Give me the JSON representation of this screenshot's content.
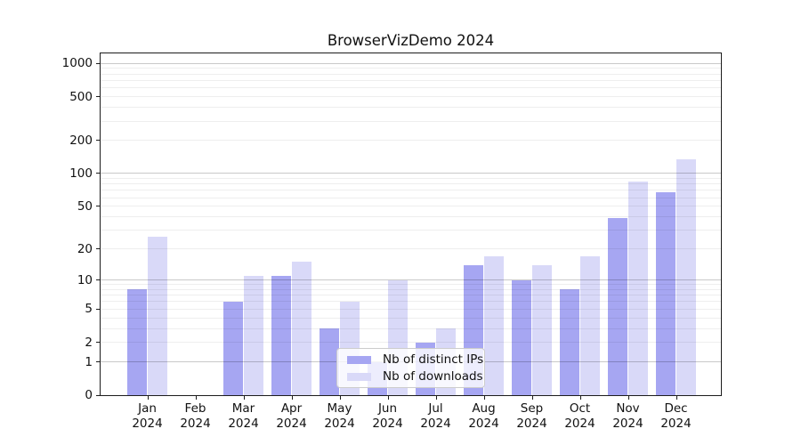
{
  "chart_data": {
    "type": "bar",
    "title": "BrowserVizDemo 2024",
    "categories": [
      {
        "month": "Jan",
        "year": "2024"
      },
      {
        "month": "Feb",
        "year": "2024"
      },
      {
        "month": "Mar",
        "year": "2024"
      },
      {
        "month": "Apr",
        "year": "2024"
      },
      {
        "month": "May",
        "year": "2024"
      },
      {
        "month": "Jun",
        "year": "2024"
      },
      {
        "month": "Jul",
        "year": "2024"
      },
      {
        "month": "Aug",
        "year": "2024"
      },
      {
        "month": "Sep",
        "year": "2024"
      },
      {
        "month": "Oct",
        "year": "2024"
      },
      {
        "month": "Nov",
        "year": "2024"
      },
      {
        "month": "Dec",
        "year": "2024"
      }
    ],
    "series": [
      {
        "name": "Nb of distinct IPs",
        "color": "#a6a6f2",
        "values": [
          8,
          0,
          6,
          11,
          3,
          1,
          2,
          14,
          10,
          8,
          39,
          68
        ]
      },
      {
        "name": "Nb of downloads",
        "color": "#d9d9f8",
        "values": [
          26,
          0,
          11,
          15,
          6,
          10,
          3,
          17,
          14,
          17,
          84,
          135
        ]
      }
    ],
    "xlabel": "",
    "ylabel": "",
    "yscale": "log1p",
    "ylim": [
      0,
      1230
    ],
    "yticks": [
      0,
      1,
      2,
      5,
      10,
      20,
      50,
      100,
      200,
      500,
      1000
    ],
    "minor_gridlines": [
      2,
      3,
      4,
      5,
      6,
      7,
      8,
      9,
      20,
      30,
      40,
      50,
      60,
      70,
      80,
      90,
      200,
      300,
      400,
      500,
      600,
      700,
      800,
      900
    ],
    "major_gridlines": [
      1,
      10,
      100,
      1000
    ],
    "grid": true,
    "legend_position": "inside-lower-center"
  },
  "colors": {
    "background": "#ffffff",
    "axis": "#1c1c1c",
    "legend_border": "#cccccc"
  }
}
